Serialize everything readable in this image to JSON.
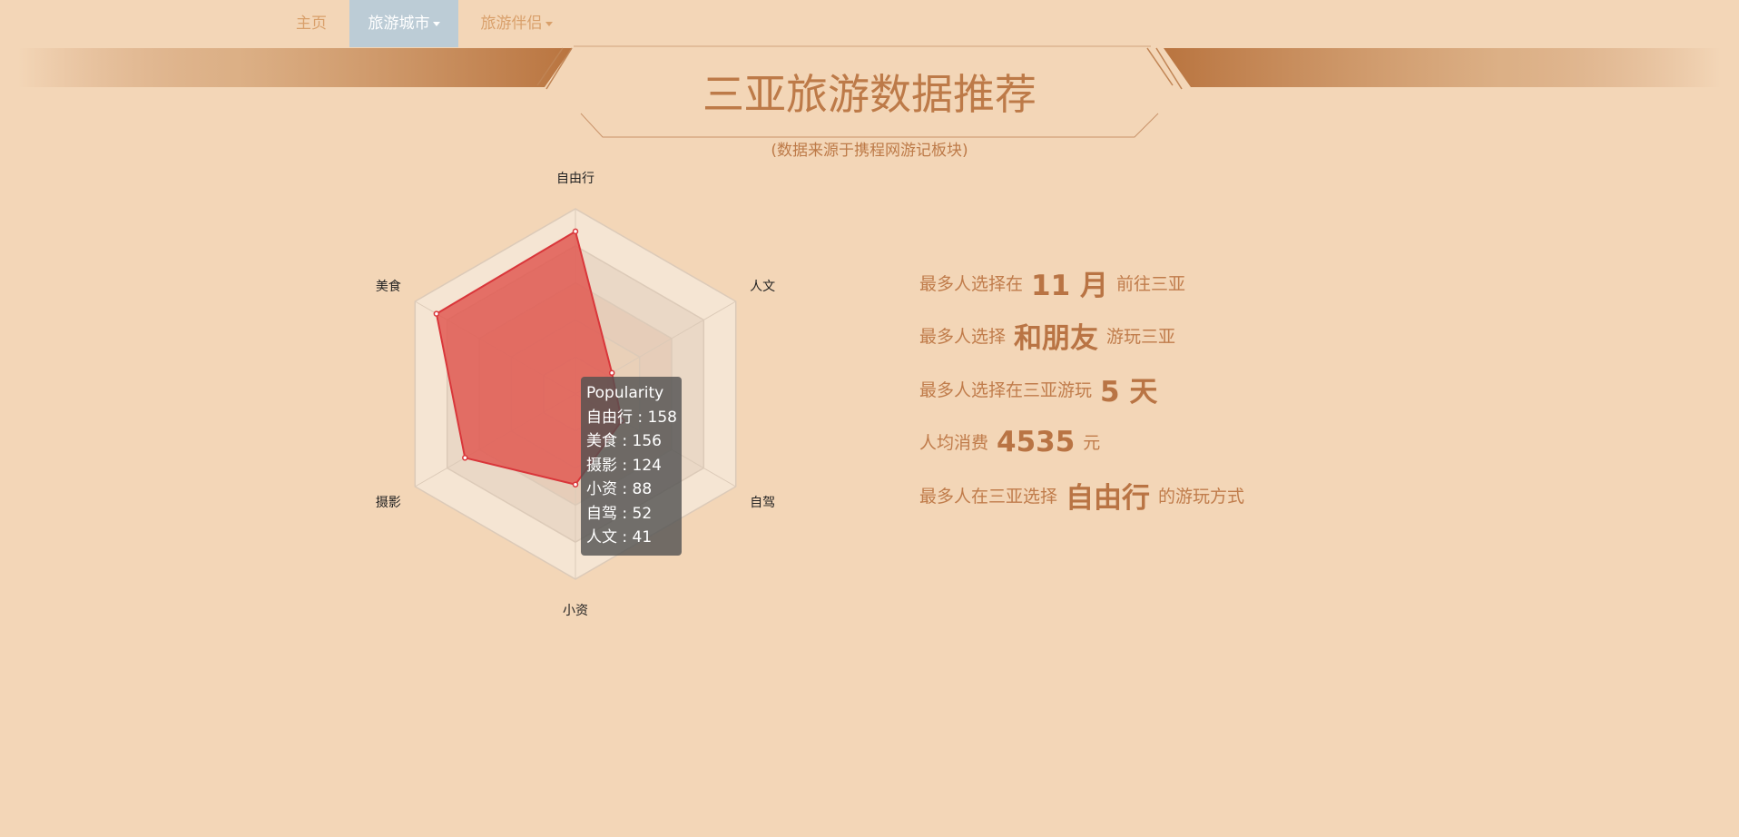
{
  "nav": {
    "home": "主页",
    "city": "旅游城市",
    "companion": "旅游伴侣"
  },
  "header": {
    "title": "三亚旅游数据推荐",
    "subtitle": "(数据来源于携程网游记板块)"
  },
  "colors": {
    "background": "#f3d6b7",
    "accent": "#bd7a48",
    "radar_fill": "#e05a52",
    "radar_stroke": "#d9363a",
    "nav_active": "#bcccd6"
  },
  "chart_data": {
    "type": "radar",
    "max": 180,
    "indicators": [
      "自由行",
      "人文",
      "自驾",
      "小资",
      "摄影",
      "美食"
    ],
    "series": [
      {
        "name": "Popularity",
        "values": [
          158,
          41,
          52,
          88,
          124,
          156
        ]
      }
    ],
    "tooltip": {
      "title": "Popularity",
      "rows": [
        "自由行 : 158",
        "美食 : 156",
        "摄影 : 124",
        "小资 : 88",
        "自驾 : 52",
        "人文 : 41"
      ]
    }
  },
  "stats": [
    {
      "prefix": "最多人选择在",
      "value": "11 月",
      "suffix": "前往三亚"
    },
    {
      "prefix": "最多人选择",
      "value": "和朋友",
      "suffix": "游玩三亚"
    },
    {
      "prefix": "最多人选择在三亚游玩",
      "value": "5 天",
      "suffix": ""
    },
    {
      "prefix": "人均消费",
      "value": "4535",
      "suffix": "元"
    },
    {
      "prefix": "最多人在三亚选择",
      "value": "自由行",
      "suffix": "的游玩方式"
    }
  ]
}
